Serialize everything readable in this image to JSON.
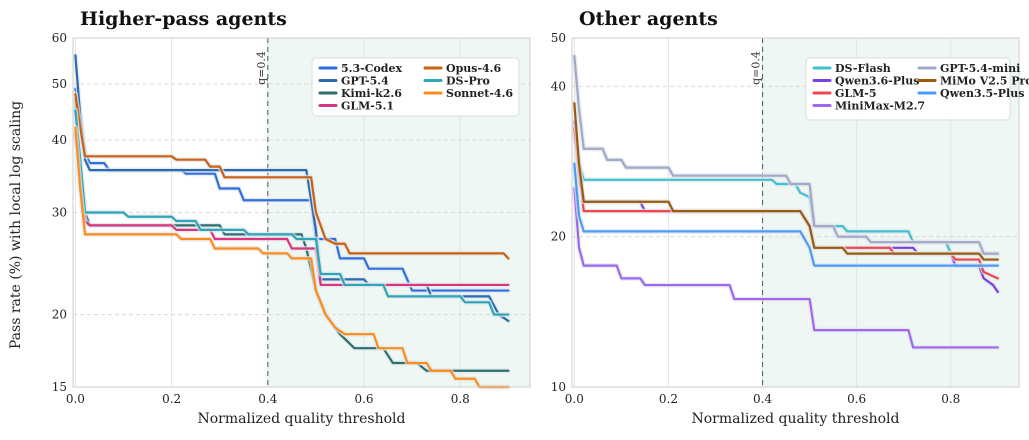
{
  "ylabel": "Pass rate (%) with local log scaling",
  "chart_data": [
    {
      "type": "line",
      "title": "Higher-pass agents",
      "xlabel": "Normalized quality threshold",
      "ylabel": "Pass rate (%) with local log scaling",
      "y_scale": "log",
      "xlim": [
        -0.005,
        0.945
      ],
      "ylim": [
        15,
        60
      ],
      "x_ticks": [
        0.0,
        0.2,
        0.4,
        0.6,
        0.8
      ],
      "x_tick_labels": [
        "0.0",
        "0.2",
        "0.4",
        "0.6",
        "0.8"
      ],
      "y_ticks": [
        15,
        20,
        30,
        40,
        50,
        60
      ],
      "y_tick_labels": [
        "15",
        "20",
        "30",
        "40",
        "50",
        "60"
      ],
      "annotation": {
        "x": 0.4,
        "label": "q=0.4"
      },
      "shaded_region_from_x": 0.4,
      "legend_position": "top-right",
      "grid": true,
      "series": [
        {
          "name": "5.3-Codex",
          "color": "#2f6ee0",
          "points": [
            [
              0,
              49
            ],
            [
              0.01,
              44
            ],
            [
              0.02,
              38
            ],
            [
              0.03,
              36.5
            ],
            [
              0.06,
              36.5
            ],
            [
              0.07,
              35.5
            ],
            [
              0.22,
              35.5
            ],
            [
              0.23,
              35
            ],
            [
              0.29,
              35
            ],
            [
              0.3,
              33
            ],
            [
              0.34,
              33
            ],
            [
              0.35,
              31.5
            ],
            [
              0.49,
              31.5
            ],
            [
              0.5,
              27
            ],
            [
              0.54,
              27
            ],
            [
              0.55,
              25
            ],
            [
              0.6,
              25
            ],
            [
              0.61,
              24
            ],
            [
              0.68,
              24
            ],
            [
              0.7,
              22
            ],
            [
              0.9,
              22
            ]
          ]
        },
        {
          "name": "GPT-5.4",
          "color": "#2a6bb0",
          "points": [
            [
              0,
              56
            ],
            [
              0.01,
              44
            ],
            [
              0.02,
              37
            ],
            [
              0.03,
              35.5
            ],
            [
              0.48,
              35.5
            ],
            [
              0.5,
              28
            ],
            [
              0.51,
              23
            ],
            [
              0.6,
              23
            ],
            [
              0.61,
              22.5
            ],
            [
              0.73,
              22.5
            ],
            [
              0.74,
              21.5
            ],
            [
              0.86,
              21.5
            ],
            [
              0.88,
              20
            ],
            [
              0.9,
              19.5
            ]
          ]
        },
        {
          "name": "Kimi-k2.6",
          "color": "#2b6f6f",
          "points": [
            [
              0,
              47
            ],
            [
              0.01,
              35
            ],
            [
              0.02,
              30
            ],
            [
              0.03,
              28.5
            ],
            [
              0.3,
              28.5
            ],
            [
              0.31,
              27.5
            ],
            [
              0.47,
              27.5
            ],
            [
              0.48,
              26
            ],
            [
              0.5,
              22
            ],
            [
              0.52,
              20
            ],
            [
              0.55,
              18.5
            ],
            [
              0.58,
              17.5
            ],
            [
              0.64,
              17.5
            ],
            [
              0.66,
              16.5
            ],
            [
              0.71,
              16.5
            ],
            [
              0.73,
              16
            ],
            [
              0.9,
              16
            ]
          ]
        },
        {
          "name": "GLM-5.1",
          "color": "#d9357f",
          "points": [
            [
              0,
              41
            ],
            [
              0.01,
              35
            ],
            [
              0.02,
              29
            ],
            [
              0.03,
              28.5
            ],
            [
              0.2,
              28.5
            ],
            [
              0.21,
              28
            ],
            [
              0.28,
              28
            ],
            [
              0.29,
              27
            ],
            [
              0.44,
              27
            ],
            [
              0.45,
              26
            ],
            [
              0.5,
              26
            ],
            [
              0.51,
              22.5
            ],
            [
              0.9,
              22.5
            ]
          ]
        },
        {
          "name": "Opus-4.6",
          "color": "#cc5f12",
          "points": [
            [
              0,
              48
            ],
            [
              0.01,
              42
            ],
            [
              0.02,
              37.5
            ],
            [
              0.2,
              37.5
            ],
            [
              0.21,
              37
            ],
            [
              0.27,
              37
            ],
            [
              0.28,
              36
            ],
            [
              0.3,
              36
            ],
            [
              0.31,
              34.5
            ],
            [
              0.49,
              34.5
            ],
            [
              0.5,
              30
            ],
            [
              0.52,
              27
            ],
            [
              0.54,
              26.5
            ],
            [
              0.56,
              26.5
            ],
            [
              0.57,
              25.5
            ],
            [
              0.89,
              25.5
            ],
            [
              0.9,
              25
            ]
          ]
        },
        {
          "name": "DS-Pro",
          "color": "#2aa6b8",
          "points": [
            [
              0,
              45
            ],
            [
              0.01,
              37
            ],
            [
              0.02,
              30
            ],
            [
              0.1,
              30
            ],
            [
              0.11,
              29.5
            ],
            [
              0.2,
              29.5
            ],
            [
              0.21,
              29
            ],
            [
              0.25,
              29
            ],
            [
              0.26,
              28
            ],
            [
              0.35,
              28
            ],
            [
              0.36,
              27.5
            ],
            [
              0.45,
              27.5
            ],
            [
              0.46,
              27
            ],
            [
              0.5,
              27
            ],
            [
              0.51,
              23.5
            ],
            [
              0.55,
              23.5
            ],
            [
              0.56,
              22.5
            ],
            [
              0.64,
              22.5
            ],
            [
              0.65,
              21.5
            ],
            [
              0.8,
              21.5
            ],
            [
              0.81,
              21
            ],
            [
              0.86,
              21
            ],
            [
              0.87,
              20
            ],
            [
              0.9,
              20
            ]
          ]
        },
        {
          "name": "Sonnet-4.6",
          "color": "#ff8c1a",
          "points": [
            [
              0,
              42
            ],
            [
              0.01,
              33
            ],
            [
              0.02,
              27.5
            ],
            [
              0.21,
              27.5
            ],
            [
              0.22,
              27
            ],
            [
              0.28,
              27
            ],
            [
              0.29,
              26
            ],
            [
              0.38,
              26
            ],
            [
              0.39,
              25.5
            ],
            [
              0.44,
              25.5
            ],
            [
              0.45,
              25
            ],
            [
              0.49,
              25
            ],
            [
              0.5,
              22
            ],
            [
              0.51,
              21
            ],
            [
              0.52,
              20
            ],
            [
              0.54,
              19
            ],
            [
              0.56,
              18.5
            ],
            [
              0.62,
              18.5
            ],
            [
              0.63,
              17.5
            ],
            [
              0.68,
              17.5
            ],
            [
              0.69,
              16.5
            ],
            [
              0.73,
              16.5
            ],
            [
              0.74,
              16
            ],
            [
              0.78,
              16
            ],
            [
              0.79,
              15.5
            ],
            [
              0.83,
              15.5
            ],
            [
              0.84,
              15
            ],
            [
              0.9,
              15
            ]
          ]
        }
      ]
    },
    {
      "type": "line",
      "title": "Other agents",
      "xlabel": "Normalized quality threshold",
      "ylabel": "",
      "y_scale": "log",
      "xlim": [
        -0.005,
        0.945
      ],
      "ylim": [
        10,
        50
      ],
      "x_ticks": [
        0.0,
        0.2,
        0.4,
        0.6,
        0.8
      ],
      "x_tick_labels": [
        "0.0",
        "0.2",
        "0.4",
        "0.6",
        "0.8"
      ],
      "y_ticks": [
        10,
        20,
        40,
        50
      ],
      "y_tick_labels": [
        "10",
        "20",
        "40",
        "50"
      ],
      "annotation": {
        "x": 0.4,
        "label": "q=0.4"
      },
      "shaded_region_from_x": 0.4,
      "legend_position": "top-right",
      "grid": true,
      "series": [
        {
          "name": "DS-Flash",
          "color": "#3ec1d3",
          "points": [
            [
              0,
              32
            ],
            [
              0.01,
              28
            ],
            [
              0.02,
              26
            ],
            [
              0.42,
              26
            ],
            [
              0.43,
              25.5
            ],
            [
              0.47,
              25.5
            ],
            [
              0.48,
              24.5
            ],
            [
              0.5,
              24
            ],
            [
              0.51,
              21
            ],
            [
              0.57,
              21
            ],
            [
              0.58,
              20.5
            ],
            [
              0.71,
              20.5
            ],
            [
              0.72,
              19.5
            ],
            [
              0.79,
              19.5
            ],
            [
              0.8,
              18.5
            ],
            [
              0.9,
              18.5
            ]
          ]
        },
        {
          "name": "Qwen3.6-Plus",
          "color": "#7b3fe4",
          "points": [
            [
              0,
              34
            ],
            [
              0.01,
              26
            ],
            [
              0.02,
              23.5
            ],
            [
              0.14,
              23.5
            ],
            [
              0.15,
              22.5
            ],
            [
              0.48,
              22.5
            ],
            [
              0.5,
              21
            ],
            [
              0.51,
              19
            ],
            [
              0.72,
              19
            ],
            [
              0.73,
              18.5
            ],
            [
              0.8,
              18.5
            ],
            [
              0.81,
              17.5
            ],
            [
              0.86,
              17.5
            ],
            [
              0.87,
              16.5
            ],
            [
              0.89,
              16
            ],
            [
              0.9,
              15.5
            ]
          ]
        },
        {
          "name": "GLM-5",
          "color": "#f0464e",
          "points": [
            [
              0,
              33
            ],
            [
              0.01,
              27
            ],
            [
              0.02,
              22.5
            ],
            [
              0.48,
              22.5
            ],
            [
              0.5,
              21
            ],
            [
              0.51,
              19
            ],
            [
              0.67,
              19
            ],
            [
              0.68,
              18.5
            ],
            [
              0.8,
              18.5
            ],
            [
              0.81,
              18
            ],
            [
              0.86,
              18
            ],
            [
              0.87,
              17
            ],
            [
              0.9,
              16.5
            ]
          ]
        },
        {
          "name": "MiniMax-M2.7",
          "color": "#a066f0",
          "points": [
            [
              0,
              25
            ],
            [
              0.01,
              19
            ],
            [
              0.02,
              17.5
            ],
            [
              0.09,
              17.5
            ],
            [
              0.1,
              16.5
            ],
            [
              0.14,
              16.5
            ],
            [
              0.15,
              16
            ],
            [
              0.33,
              16
            ],
            [
              0.34,
              15
            ],
            [
              0.5,
              15
            ],
            [
              0.51,
              13
            ],
            [
              0.71,
              13
            ],
            [
              0.72,
              12
            ],
            [
              0.9,
              12
            ]
          ]
        },
        {
          "name": "GPT-5.4-mini",
          "color": "#a2a8c8",
          "points": [
            [
              0,
              46
            ],
            [
              0.01,
              36
            ],
            [
              0.02,
              30
            ],
            [
              0.06,
              30
            ],
            [
              0.07,
              28.5
            ],
            [
              0.1,
              28.5
            ],
            [
              0.11,
              27.5
            ],
            [
              0.2,
              27.5
            ],
            [
              0.21,
              26.5
            ],
            [
              0.45,
              26.5
            ],
            [
              0.46,
              25.5
            ],
            [
              0.5,
              25.5
            ],
            [
              0.51,
              21
            ],
            [
              0.55,
              21
            ],
            [
              0.56,
              20
            ],
            [
              0.62,
              20
            ],
            [
              0.63,
              19.5
            ],
            [
              0.86,
              19.5
            ],
            [
              0.87,
              18.5
            ],
            [
              0.9,
              18.5
            ]
          ]
        },
        {
          "name": "MiMo V2.5 Pro",
          "color": "#9c5a0e",
          "points": [
            [
              0,
              37
            ],
            [
              0.01,
              28
            ],
            [
              0.02,
              23.5
            ],
            [
              0.2,
              23.5
            ],
            [
              0.21,
              22.5
            ],
            [
              0.48,
              22.5
            ],
            [
              0.5,
              21
            ],
            [
              0.51,
              19
            ],
            [
              0.57,
              19
            ],
            [
              0.58,
              18.5
            ],
            [
              0.86,
              18.5
            ],
            [
              0.87,
              18
            ],
            [
              0.9,
              18
            ]
          ]
        },
        {
          "name": "Qwen3.5-Plus",
          "color": "#4a9cf5",
          "points": [
            [
              0,
              28
            ],
            [
              0.01,
              22
            ],
            [
              0.02,
              20.5
            ],
            [
              0.48,
              20.5
            ],
            [
              0.5,
              19
            ],
            [
              0.51,
              17.5
            ],
            [
              0.9,
              17.5
            ]
          ]
        }
      ]
    }
  ]
}
